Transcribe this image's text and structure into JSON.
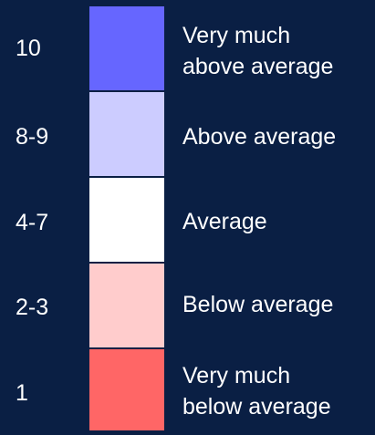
{
  "legend": {
    "rows": [
      {
        "score": "10",
        "line1": "Very much",
        "line2": "above average",
        "color": "#6666ff"
      },
      {
        "score": "8-9",
        "line1": "Above average",
        "line2": "",
        "color": "#ccccff"
      },
      {
        "score": "4-7",
        "line1": "Average",
        "line2": "",
        "color": "#ffffff"
      },
      {
        "score": "2-3",
        "line1": "Below average",
        "line2": "",
        "color": "#ffcccc"
      },
      {
        "score": "1",
        "line1": "Very much",
        "line2": "below average",
        "color": "#ff6666"
      }
    ]
  }
}
